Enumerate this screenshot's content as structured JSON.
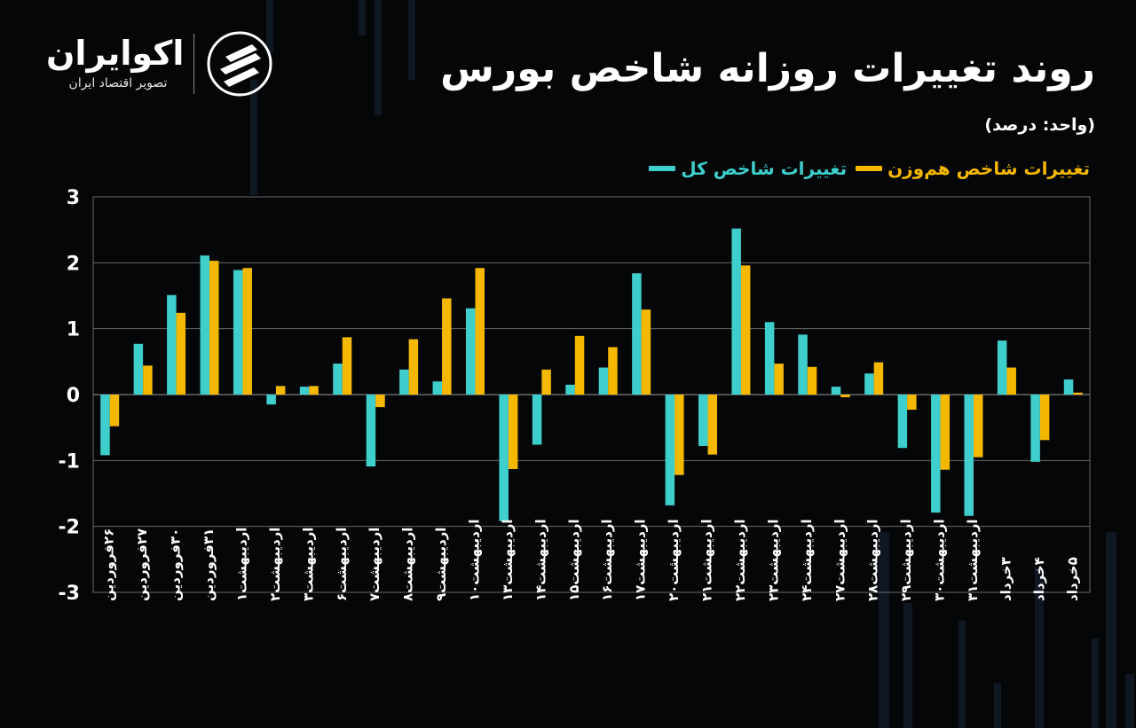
{
  "header": {
    "title": "روند تغییرات روزانه شاخص بورس",
    "unit": "(واحد: درصد)"
  },
  "brand": {
    "name": "اکوایران",
    "tagline": "تصویر اقتصاد ایران"
  },
  "icons": {
    "logo": "ecoiran-logo-icon"
  },
  "colors": {
    "background": "#050608",
    "total_index": "#3ecfcc",
    "equal_weight_index": "#f5b800",
    "grid": "#6a6a6a"
  },
  "chart_data": {
    "type": "bar",
    "ylim": [
      -3,
      3
    ],
    "yticks": [
      "3",
      "2",
      "1",
      "0",
      "-1",
      "-2",
      "-3"
    ],
    "ytick_values": [
      3,
      2,
      1,
      0,
      -1,
      -2,
      -3
    ],
    "grid": true,
    "legend_position": "top-right",
    "categories": [
      "۲۶فروردین",
      "۲۷فروردین",
      "۳۰فروردین",
      "۳۱فروردین",
      "اردیبهشت۱",
      "اردیبهشت۲",
      "اردیبهشت۳",
      "اردیبهشت۶",
      "اردیبهشت۷",
      "اردیبهشت۸",
      "اردیبهشت۹",
      "اردیبهشت۱۰",
      "اردیبهشت۱۳",
      "اردیبهشت۱۴",
      "اردیبهشت۱۵",
      "اردیبهشت۱۶",
      "اردیبهشت۱۷",
      "اردیبهشت۲۰",
      "اردیبهشت۲۱",
      "اردیبهشت۲۲",
      "اردیبهشت۲۳",
      "اردیبهشت۲۴",
      "اردیبهشت۲۷",
      "اردیبهشت۲۸",
      "اردیبهشت۲۹",
      "اردیبهشت۳۰",
      "اردیبهشت۳۱",
      "۳خرداد",
      "۴خرداد",
      "۵خرداد"
    ],
    "series": [
      {
        "name": "تغییرات شاخص کل",
        "values": [
          -0.92,
          0.77,
          1.51,
          2.11,
          1.89,
          -0.15,
          0.12,
          0.47,
          -1.09,
          0.38,
          0.2,
          1.31,
          -1.92,
          -0.76,
          0.15,
          0.41,
          1.84,
          -1.68,
          -0.78,
          2.52,
          1.1,
          0.91,
          0.12,
          0.32,
          -0.81,
          -1.79,
          -1.84,
          0.82,
          -1.02,
          0.23
        ]
      },
      {
        "name": "تغییرات شاخص هم‌وزن",
        "values": [
          -0.48,
          0.44,
          1.24,
          2.03,
          1.92,
          0.13,
          0.13,
          0.87,
          -0.19,
          0.84,
          1.46,
          1.92,
          -1.13,
          0.38,
          0.89,
          0.72,
          1.29,
          -1.22,
          -0.91,
          1.96,
          0.47,
          0.42,
          -0.04,
          0.49,
          -0.23,
          -1.14,
          -0.95,
          0.41,
          -0.69,
          0.03
        ]
      }
    ]
  }
}
